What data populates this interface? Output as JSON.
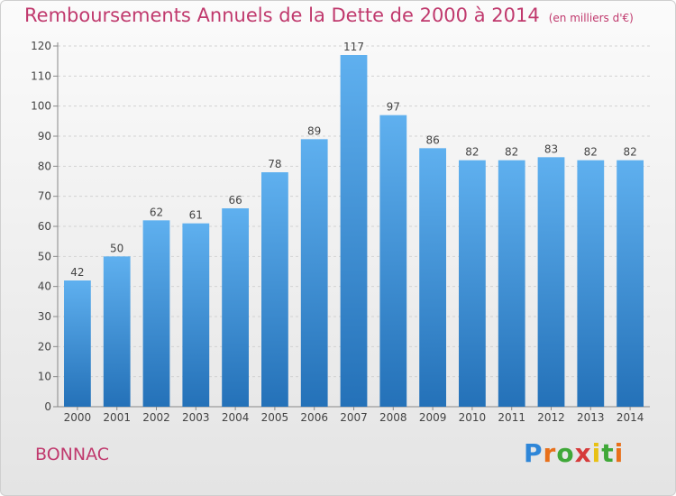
{
  "chart_data": {
    "type": "bar",
    "title": "Remboursements Annuels de la Dette de 2000 à 2014",
    "unit": "(en milliers d'€)",
    "categories": [
      "2000",
      "2001",
      "2002",
      "2003",
      "2004",
      "2005",
      "2006",
      "2007",
      "2008",
      "2009",
      "2010",
      "2011",
      "2012",
      "2013",
      "2014"
    ],
    "values": [
      42,
      50,
      62,
      61,
      66,
      78,
      89,
      117,
      97,
      86,
      82,
      82,
      83,
      82,
      82
    ],
    "ylim": [
      0,
      120
    ],
    "yticks": [
      0,
      10,
      20,
      30,
      40,
      50,
      60,
      70,
      80,
      90,
      100,
      110,
      120
    ],
    "grid": true,
    "bar_color": "#3a8fd6"
  },
  "commune": "BONNAC",
  "logo": {
    "text": "Proxiti"
  }
}
